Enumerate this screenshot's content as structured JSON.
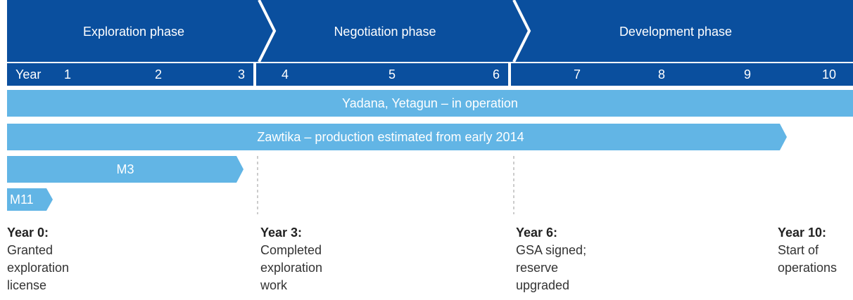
{
  "phases": [
    "Exploration phase",
    "Negotiation phase",
    "Development phase"
  ],
  "year_row": {
    "label": "Year",
    "years": [
      1,
      2,
      3,
      4,
      5,
      6,
      7,
      8,
      9,
      10
    ]
  },
  "bars": [
    "Yadana, Yetagun – in operation",
    "Zawtika – production estimated from early 2014",
    "M3",
    "M11"
  ],
  "milestones": [
    {
      "title": "Year 0:",
      "lines": [
        "Granted",
        "exploration",
        "license"
      ]
    },
    {
      "title": "Year 3:",
      "lines": [
        "Completed",
        "exploration",
        "work"
      ]
    },
    {
      "title": "Year 6:",
      "lines": [
        "GSA signed;",
        "reserve",
        "upgraded"
      ]
    },
    {
      "title": "Year 10:",
      "lines": [
        "Start of",
        "operations"
      ]
    }
  ]
}
